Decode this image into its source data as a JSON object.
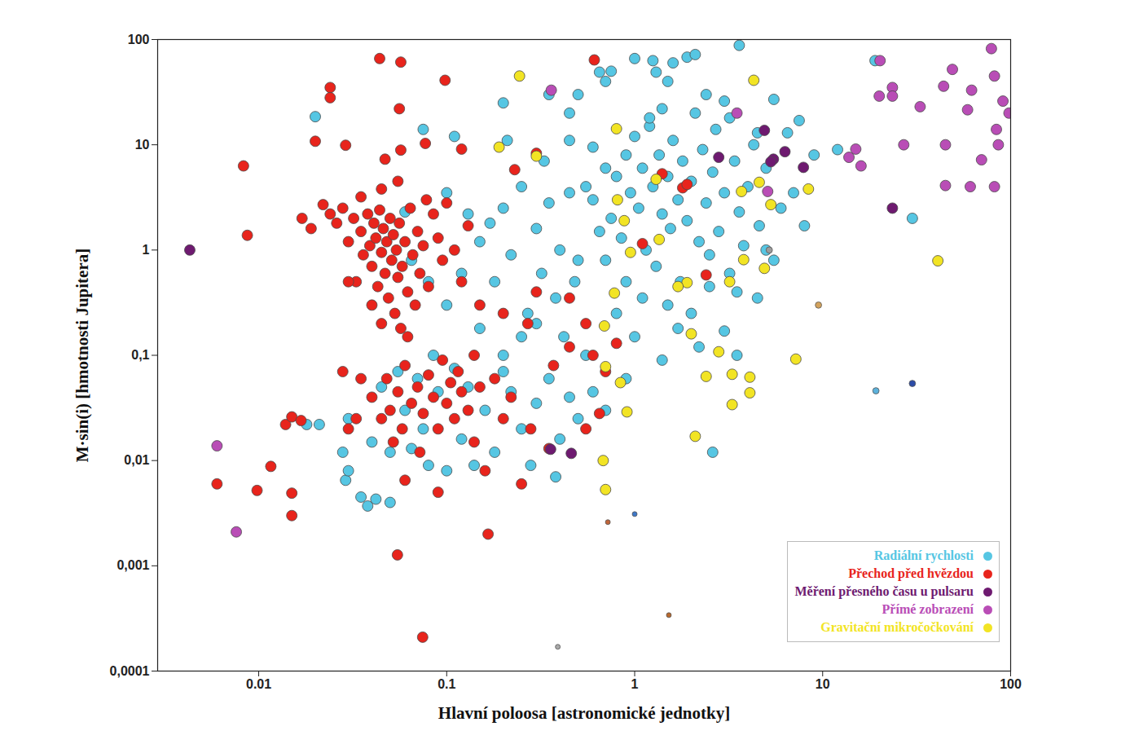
{
  "chart_data": {
    "type": "scatter",
    "x_label": "Hlavní poloosa [astronomické jednotky]",
    "y_label": "M·sin(i) [hmotnosti Jupitera]",
    "log": true,
    "grid": false,
    "legend": "bottom-right",
    "xlim": [
      0.0029,
      100
    ],
    "xticks": [
      0.01,
      0.1,
      1,
      10,
      100
    ],
    "ylim": [
      0.0001,
      100
    ],
    "yticks": [
      {
        "value": 0.0001,
        "label": "0,0001"
      },
      {
        "value": 0.001,
        "label": "0,001"
      },
      {
        "value": 0.01,
        "label": "0,01"
      },
      {
        "value": 0.1,
        "label": "0,1"
      },
      1,
      10,
      100
    ],
    "series": [
      {
        "name": "Radiální rychlosti",
        "color": "#56c6e3",
        "marker": "circle",
        "x": [
          1.0,
          1.25,
          1.6,
          1.9,
          2.1,
          3.6,
          1.3,
          1.5,
          2.4,
          3.0,
          0.75,
          0.7,
          0.65,
          0.45,
          0.35,
          0.5,
          19,
          30,
          12,
          7.5,
          5.5,
          4.5,
          0.02,
          0.075,
          0.11,
          0.2,
          0.21,
          0.33,
          0.45,
          0.6,
          0.55,
          0.6,
          0.7,
          0.75,
          0.8,
          0.85,
          0.9,
          0.95,
          1.0,
          1.05,
          1.1,
          1.15,
          1.2,
          1.25,
          1.3,
          1.35,
          1.4,
          1.5,
          1.55,
          1.6,
          1.7,
          1.75,
          1.8,
          1.9,
          2.0,
          2.1,
          2.2,
          2.3,
          2.4,
          2.5,
          2.6,
          2.7,
          2.8,
          3.0,
          3.2,
          3.4,
          3.6,
          3.8,
          4.0,
          4.3,
          4.6,
          5.0,
          5.5,
          6.0,
          6.5,
          7.0,
          8.0,
          9.0,
          1.1,
          1.5,
          2.0,
          2.5,
          3.5,
          4.5,
          0.9,
          0.7,
          0.65,
          0.5,
          1.2,
          1.4,
          3.2,
          5.0,
          0.8,
          1.0,
          1.7,
          2.2,
          3.0,
          3.5,
          2.6,
          1.4,
          0.12,
          0.15,
          0.18,
          0.2,
          0.22,
          0.25,
          0.27,
          0.3,
          0.32,
          0.35,
          0.38,
          0.4,
          0.42,
          0.45,
          0.48,
          0.25,
          0.3,
          0.2,
          0.15,
          0.1,
          0.08,
          0.065,
          0.06,
          0.1,
          0.13,
          0.17,
          0.028,
          0.029,
          0.03,
          0.035,
          0.038,
          0.042,
          0.05,
          0.03,
          0.04,
          0.045,
          0.05,
          0.055,
          0.06,
          0.065,
          0.07,
          0.075,
          0.08,
          0.085,
          0.09,
          0.1,
          0.11,
          0.12,
          0.13,
          0.14,
          0.16,
          0.18,
          0.2,
          0.22,
          0.25,
          0.28,
          0.3,
          0.35,
          0.4,
          0.45,
          0.5,
          0.6,
          0.7,
          0.9,
          0.55,
          0.38,
          0.021,
          0.018
        ],
        "values": [
          66,
          63,
          60,
          68,
          72,
          88,
          49,
          40,
          30,
          26,
          50,
          40,
          49,
          20,
          30,
          30,
          63,
          2.0,
          9.0,
          17,
          27,
          13,
          18.5,
          14,
          12,
          25,
          11,
          7,
          11,
          9.5,
          4,
          3,
          6,
          2,
          5,
          1.3,
          8,
          3.5,
          12,
          2.5,
          6,
          1.0,
          15,
          4,
          0.7,
          8,
          2.2,
          5,
          1.6,
          11,
          3,
          0.5,
          7,
          1.9,
          4.5,
          20,
          1.2,
          9,
          2.8,
          0.9,
          5.5,
          14,
          1.5,
          3.5,
          0.6,
          7,
          2.3,
          1.1,
          4,
          10,
          1.7,
          6,
          0.8,
          2.5,
          13,
          3.5,
          1.7,
          8,
          0.35,
          0.3,
          0.25,
          0.45,
          0.4,
          0.35,
          0.5,
          0.8,
          1.5,
          0.8,
          18,
          22,
          18,
          1.0,
          0.25,
          0.15,
          0.18,
          0.12,
          0.17,
          0.1,
          0.012,
          0.09,
          0.6,
          1.2,
          0.5,
          2.5,
          0.9,
          4,
          0.25,
          1.6,
          0.6,
          2.8,
          0.35,
          1.0,
          0.15,
          3.5,
          0.5,
          0.15,
          0.2,
          0.1,
          0.18,
          0.3,
          0.5,
          0.8,
          2.3,
          3.5,
          2.2,
          1.8,
          0.012,
          0.0065,
          0.008,
          0.0045,
          0.0037,
          0.0043,
          0.004,
          0.025,
          0.015,
          0.05,
          0.012,
          0.07,
          0.03,
          0.013,
          0.06,
          0.02,
          0.009,
          0.1,
          0.045,
          0.008,
          0.075,
          0.016,
          0.05,
          0.009,
          0.03,
          0.012,
          0.07,
          0.045,
          0.02,
          0.009,
          0.035,
          0.06,
          0.016,
          0.04,
          0.025,
          0.045,
          0.03,
          0.06,
          0.1,
          0.007,
          0.022,
          0.022
        ]
      },
      {
        "name": "Přechod před hvězdou",
        "color": "#e8241c",
        "marker": "circle",
        "x": [
          0.0083,
          0.0087,
          0.006,
          0.0098,
          0.0116,
          0.0139,
          0.015,
          0.015,
          0.015,
          0.0168,
          0.0547,
          0.0745,
          0.166,
          0.044,
          0.057,
          0.098,
          0.024,
          0.024,
          0.61,
          0.056,
          0.02,
          0.029,
          0.047,
          0.057,
          0.077,
          0.12,
          0.3,
          0.23,
          0.017,
          0.019,
          0.022,
          0.024,
          0.026,
          0.028,
          0.03,
          0.032,
          0.033,
          0.035,
          0.036,
          0.038,
          0.039,
          0.04,
          0.041,
          0.042,
          0.043,
          0.044,
          0.045,
          0.046,
          0.047,
          0.048,
          0.049,
          0.05,
          0.051,
          0.052,
          0.053,
          0.054,
          0.055,
          0.056,
          0.057,
          0.058,
          0.06,
          0.062,
          0.064,
          0.066,
          0.068,
          0.07,
          0.072,
          0.075,
          0.078,
          0.08,
          0.085,
          0.09,
          0.095,
          0.1,
          0.11,
          0.12,
          0.13,
          0.035,
          0.045,
          0.055,
          0.062,
          0.045,
          0.04,
          0.028,
          0.03,
          0.15,
          0.2,
          0.27,
          0.3,
          0.45,
          0.55,
          0.45,
          0.37,
          0.6,
          0.7,
          0.8,
          1.1,
          1.8,
          1.4,
          2.4,
          1.9,
          0.04,
          0.045,
          0.048,
          0.05,
          0.052,
          0.055,
          0.058,
          0.06,
          0.065,
          0.07,
          0.072,
          0.075,
          0.08,
          0.085,
          0.09,
          0.095,
          0.1,
          0.105,
          0.11,
          0.115,
          0.12,
          0.13,
          0.14,
          0.15,
          0.16,
          0.18,
          0.2,
          0.22,
          0.25,
          0.28,
          0.035,
          0.033,
          0.03,
          0.14,
          0.06,
          0.09,
          0.35,
          0.55,
          0.65
        ],
        "values": [
          6.3,
          1.38,
          0.006,
          0.0052,
          0.0088,
          0.022,
          0.0049,
          0.003,
          0.026,
          0.024,
          0.00127,
          0.00021,
          0.002,
          66,
          61,
          41,
          35,
          28,
          64,
          22,
          10.8,
          9.9,
          7.3,
          8.9,
          10.3,
          9.1,
          8.3,
          5.8,
          2.0,
          1.6,
          2.7,
          2.2,
          1.8,
          2.5,
          1.2,
          2.0,
          0.5,
          1.5,
          0.9,
          2.2,
          1.1,
          0.7,
          1.8,
          1.3,
          0.45,
          2.4,
          0.95,
          1.6,
          0.6,
          1.2,
          0.35,
          2.0,
          0.8,
          1.4,
          0.25,
          1.0,
          0.55,
          1.8,
          0.18,
          0.7,
          1.2,
          0.4,
          2.5,
          0.9,
          0.3,
          1.5,
          0.6,
          1.1,
          3.0,
          0.45,
          2.2,
          1.3,
          0.8,
          2.8,
          1.0,
          0.5,
          1.7,
          3.2,
          3.8,
          4.5,
          0.15,
          0.2,
          0.3,
          0.07,
          0.5,
          0.3,
          0.25,
          0.2,
          0.4,
          0.35,
          0.2,
          0.12,
          0.08,
          0.1,
          0.07,
          0.13,
          1.15,
          3.9,
          5.3,
          0.58,
          4.2,
          0.04,
          0.025,
          0.06,
          0.03,
          0.015,
          0.045,
          0.02,
          0.08,
          0.035,
          0.05,
          0.012,
          0.028,
          0.065,
          0.04,
          0.02,
          0.09,
          0.035,
          0.055,
          0.025,
          0.07,
          0.045,
          0.03,
          0.015,
          0.05,
          0.008,
          0.06,
          0.025,
          0.04,
          0.006,
          0.02,
          0.06,
          0.025,
          0.02,
          0.1,
          0.0065,
          0.005,
          0.013,
          0.02,
          0.028
        ]
      },
      {
        "name": "Měření přesného času u pulsaru",
        "color": "#6e1a70",
        "marker": "circle",
        "x": [
          0.0043,
          0.357,
          0.46,
          2.8,
          5.47,
          6.3,
          7.9,
          23.5,
          4.9,
          5.3
        ],
        "values": [
          1,
          0.0128,
          0.0117,
          7.6,
          7.3,
          8.6,
          6.1,
          2.5,
          13.7,
          6.9
        ]
      },
      {
        "name": "Přímé zobrazení",
        "color": "#b94db6",
        "marker": "circle",
        "x": [
          0.006,
          0.0076,
          0.36,
          3.5,
          20.2,
          13.8,
          15,
          16,
          20,
          23.5,
          23.5,
          27,
          33,
          44,
          45,
          45,
          49,
          59,
          61,
          62,
          70,
          79,
          82,
          86,
          82,
          91,
          84,
          98,
          5.1
        ],
        "values": [
          0.0138,
          0.0021,
          33,
          20,
          63,
          7.6,
          9.1,
          6.3,
          29,
          35,
          29,
          10,
          23,
          36,
          10,
          4.1,
          52,
          21.5,
          4,
          33,
          7.2,
          82,
          45,
          10,
          4.0,
          26,
          14,
          20,
          3.6
        ]
      },
      {
        "name": "Gravitační mikročočkování",
        "color": "#f2e424",
        "marker": "circle",
        "x": [
          0.244,
          0.19,
          4.3,
          0.8,
          0.81,
          0.88,
          1.35,
          1.9,
          0.78,
          0.95,
          0.69,
          0.7,
          0.84,
          0.91,
          0.68,
          0.7,
          2.1,
          2.4,
          3.3,
          2.8,
          4.1,
          4.1,
          3.3,
          7.2,
          41,
          8.4,
          3.7,
          1.7,
          2.0,
          3.8,
          3.2,
          4.9,
          5.3,
          4.6,
          1.3,
          0.3
        ],
        "values": [
          45,
          9.5,
          41,
          14.2,
          3,
          1.9,
          1.26,
          0.49,
          0.39,
          0.95,
          0.19,
          0.078,
          0.055,
          0.029,
          0.01,
          0.0053,
          0.017,
          0.063,
          0.066,
          0.108,
          0.062,
          0.044,
          0.034,
          0.092,
          0.79,
          3.8,
          3.6,
          0.45,
          0.16,
          0.81,
          0.5,
          0.67,
          2.7,
          4.4,
          4.7,
          7.8
        ]
      }
    ],
    "solar_system": {
      "x": [
        0.39,
        0.72,
        1.0,
        1.52,
        5.2,
        9.5,
        19.2,
        30
      ],
      "values": [
        0.00017,
        0.0026,
        0.0031,
        0.00034,
        1.0,
        0.3,
        0.046,
        0.054
      ],
      "colors": [
        "#a9a9a9",
        "#c0653a",
        "#3f78c8",
        "#b8692e",
        "#9c9c9c",
        "#d3a25c",
        "#5cb2dc",
        "#2c4ca8"
      ]
    }
  }
}
